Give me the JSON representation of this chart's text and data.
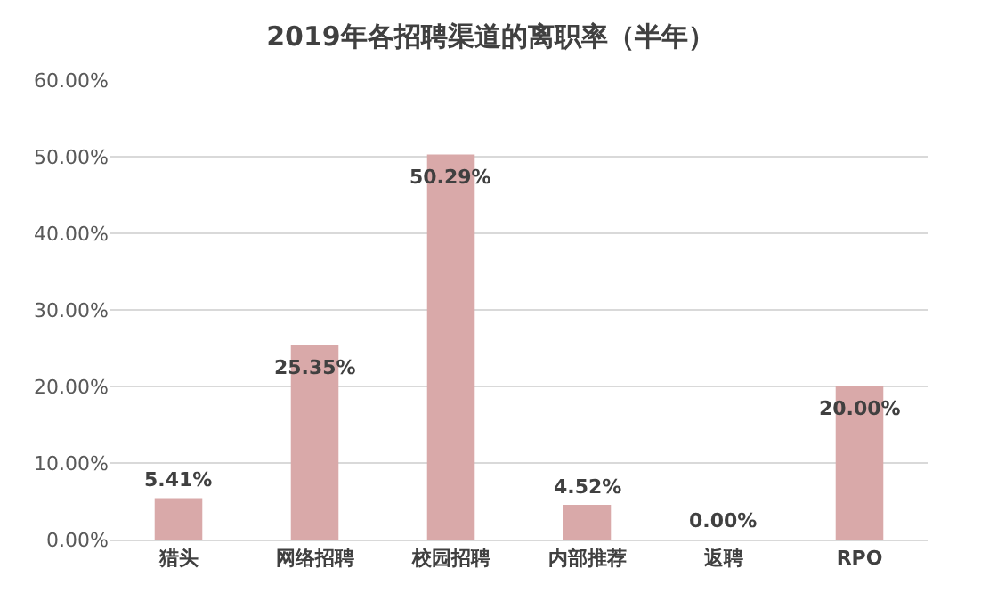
{
  "chart_data": {
    "type": "bar",
    "title": "2019年各招聘渠道的离职率（半年）",
    "categories": [
      "猎头",
      "网络招聘",
      "校园招聘",
      "内部推荐",
      "返聘",
      "RPO"
    ],
    "values": [
      5.41,
      25.35,
      50.29,
      4.52,
      0.0,
      20.0
    ],
    "value_labels": [
      "5.41%",
      "25.35%",
      "50.29%",
      "4.52%",
      "0.00%",
      "20.00%"
    ],
    "color": "#d9a9a9",
    "ylim": [
      0,
      60
    ],
    "yticks": [
      {
        "value": 0,
        "label": "0.00%"
      },
      {
        "value": 10,
        "label": "10.00%"
      },
      {
        "value": 20,
        "label": "20.00%"
      },
      {
        "value": 30,
        "label": "30.00%"
      },
      {
        "value": 40,
        "label": "40.00%"
      },
      {
        "value": 50,
        "label": "50.00%"
      },
      {
        "value": 60,
        "label": "60.00%"
      }
    ],
    "grid": "y"
  }
}
